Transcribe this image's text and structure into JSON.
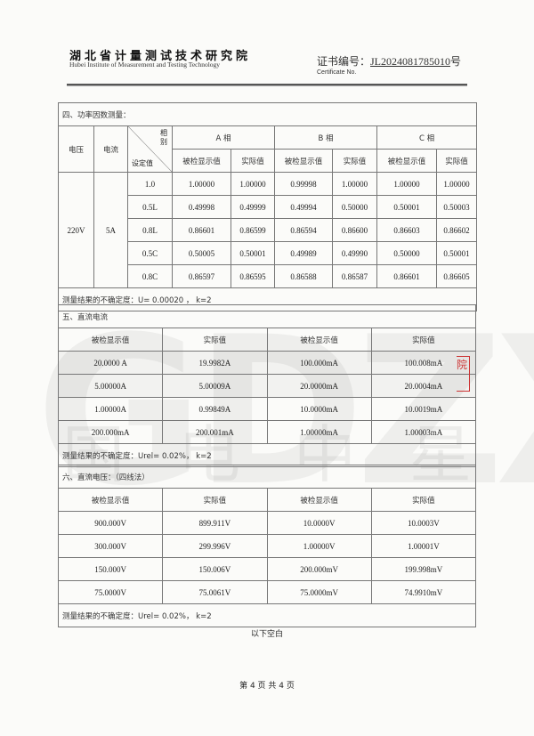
{
  "header": {
    "institute_cn": "湖北省计量测试技术研究院",
    "institute_en": "Hubei Institute of Measurement and Testing Technology",
    "cert_label": "证书编号：",
    "cert_no": "JL2024081785010",
    "cert_suffix": "号",
    "cert_label_en": "Certificate No."
  },
  "watermark": {
    "logo_text": "GDZX",
    "chars": "国电中星"
  },
  "seal_char": "院",
  "section4": {
    "title": "四、功率因数测量：",
    "col_voltage": "电压",
    "col_current": "电流",
    "diag_top": "相别",
    "diag_bottom": "设定值",
    "phases": [
      "A 相",
      "B 相",
      "C 相"
    ],
    "sub_display": "被检显示值",
    "sub_actual": "实际值",
    "voltage": "220V",
    "current": "5A",
    "rows": [
      [
        "1.0",
        "1.00000",
        "1.00000",
        "0.99998",
        "1.00000",
        "1.00000",
        "1.00000"
      ],
      [
        "0.5L",
        "0.49998",
        "0.49999",
        "0.49994",
        "0.50000",
        "0.50001",
        "0.50003"
      ],
      [
        "0.8L",
        "0.86601",
        "0.86599",
        "0.86594",
        "0.86600",
        "0.86603",
        "0.86602"
      ],
      [
        "0.5C",
        "0.50005",
        "0.50001",
        "0.49989",
        "0.49990",
        "0.50000",
        "0.50001"
      ],
      [
        "0.8C",
        "0.86597",
        "0.86595",
        "0.86588",
        "0.86587",
        "0.86601",
        "0.86605"
      ]
    ],
    "uncertainty": "测量结果的不确定度：U= 0.00020 ， k=2"
  },
  "section5": {
    "title": "五、直流电流",
    "headers": [
      "被检显示值",
      "实际值",
      "被检显示值",
      "实际值"
    ],
    "rows": [
      [
        "20.0000 A",
        "19.9982A",
        "100.000mA",
        "100.008mA"
      ],
      [
        "5.00000A",
        "5.00009A",
        "20.0000mA",
        "20.0004mA"
      ],
      [
        "1.00000A",
        "0.99849A",
        "10.0000mA",
        "10.0019mA"
      ],
      [
        "200.000mA",
        "200.001mA",
        "1.00000mA",
        "1.00003mA"
      ]
    ],
    "uncertainty": "测量结果的不确定度：Urel= 0.02%， k=2"
  },
  "section6": {
    "title": "六、直流电压：（四线法）",
    "headers": [
      "被检显示值",
      "实际值",
      "被检显示值",
      "实际值"
    ],
    "rows": [
      [
        "900.000V",
        "899.911V",
        "10.0000V",
        "10.0003V"
      ],
      [
        "300.000V",
        "299.996V",
        "1.00000V",
        "1.00001V"
      ],
      [
        "150.000V",
        "150.006V",
        "200.000mV",
        "199.998mV"
      ],
      [
        "75.0000V",
        "75.0061V",
        "75.0000mV",
        "74.9910mV"
      ]
    ],
    "uncertainty": "测量结果的不确定度：Urel= 0.02%， k=2"
  },
  "blank_note": "以下空白",
  "footer": "第 4 页 共 4 页"
}
